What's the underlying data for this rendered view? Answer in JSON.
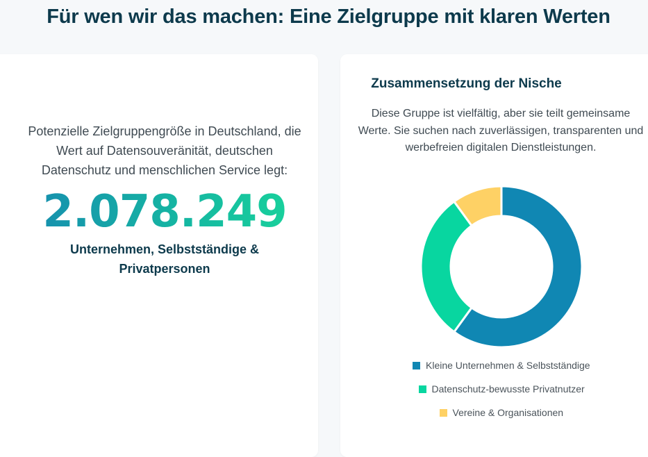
{
  "page": {
    "heading": "Für wen wir das machen: Eine Zielgruppe mit klaren Werten"
  },
  "stat": {
    "intro": "Potenzielle Zielgruppengröße in Deutschland, die Wert auf Datensouveränität, deutschen Datenschutz und menschlichen Service legt:",
    "number": "2.078.249",
    "label": "Unternehmen, Selbstständige & Privatpersonen"
  },
  "chart_panel": {
    "title": "Zusammensetzung der Nische",
    "description": "Diese Gruppe ist vielfältig, aber sie teilt gemeinsame Werte. Sie suchen nach zuverlässigen, transparenten und werbefreien digitalen Dienstleistungen."
  },
  "chart_data": {
    "type": "pie",
    "variant": "donut",
    "title": "Zusammensetzung der Nische",
    "categories": [
      "Kleine Unternehmen & Selbstständige",
      "Datenschutz-bewusste Privatnutzer",
      "Vereine & Organisationen"
    ],
    "values": [
      60,
      30,
      10
    ],
    "colors": [
      "#1087b3",
      "#08d6a0",
      "#fed165"
    ],
    "legend_position": "bottom"
  }
}
